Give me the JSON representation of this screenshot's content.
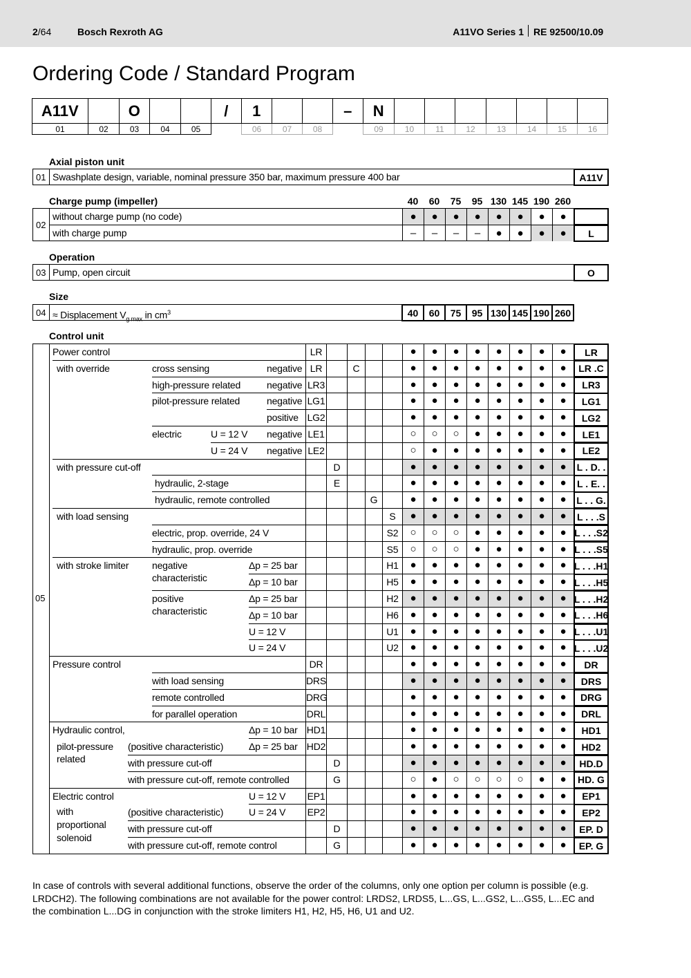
{
  "header": {
    "page": "2",
    "page_total": "/64",
    "company": "Bosch Rexroth AG",
    "series": "A11VO Series 1",
    "doc": "RE 92500/10.09"
  },
  "title": "Ordering Code / Standard Program",
  "code_boxes": [
    "A11V",
    "",
    "O",
    "",
    "",
    "/",
    "1",
    "",
    "",
    "–",
    "N",
    "",
    "",
    "",
    "",
    "",
    "",
    ""
  ],
  "code_numbers": [
    "01",
    "02",
    "03",
    "04",
    "05",
    "",
    "06",
    "07",
    "08",
    "",
    "09",
    "10",
    "11",
    "12",
    "13",
    "14",
    "15",
    "16"
  ],
  "sizes": [
    "40",
    "60",
    "75",
    "95",
    "130",
    "145",
    "190",
    "260"
  ],
  "s01": {
    "heading": "Axial piston unit",
    "num": "01",
    "text": "Swashplate design, variable, nominal pressure 350 bar, maximum pressure 400 bar",
    "code": "A11V"
  },
  "s02": {
    "heading": "Charge pump (impeller)",
    "num": "02",
    "rows": [
      {
        "text": "without charge pump (no code)",
        "avail": [
          "●",
          "●",
          "●",
          "●",
          "●",
          "●",
          "●",
          "●"
        ],
        "shade": [
          1,
          1,
          1,
          1,
          1,
          1,
          0,
          0
        ],
        "code": ""
      },
      {
        "text": "with charge pump",
        "avail": [
          "–",
          "–",
          "–",
          "–",
          "●",
          "●",
          "●",
          "●"
        ],
        "shade": [
          0,
          0,
          0,
          0,
          0,
          0,
          1,
          1
        ],
        "code": "L"
      }
    ]
  },
  "s03": {
    "heading": "Operation",
    "num": "03",
    "text": "Pump, open circuit",
    "code": "O"
  },
  "s04": {
    "heading": "Size",
    "num": "04",
    "text_pre": "≈ Displacement V",
    "text_sub": "g max",
    "text_post": " in cm",
    "text_sup": "3"
  },
  "s05": {
    "heading": "Control unit",
    "num": "05",
    "rows": [
      {
        "g": "Power control",
        "s": "",
        "o": "",
        "v": "",
        "n": "",
        "codes": [
          "LR",
          "",
          "",
          "",
          ""
        ],
        "avail": "●●●●●●●●",
        "shade": false,
        "order": "LR"
      },
      {
        "g": "",
        "s": "with override",
        "o": "cross sensing",
        "v": "",
        "n": "negative",
        "codes": [
          "LR",
          "",
          "C",
          "",
          ""
        ],
        "avail": "●●●●●●●●",
        "shade": false,
        "order": "LR .C"
      },
      {
        "g": "",
        "s": "",
        "o": "high-pressure related",
        "v": "",
        "n": "negative",
        "codes": [
          "LR3",
          "",
          "",
          "",
          ""
        ],
        "avail": "●●●●●●●●",
        "shade": false,
        "order": "LR3"
      },
      {
        "g": "",
        "s": "",
        "o": "pilot-pressure related",
        "v": "",
        "n": "negative",
        "codes": [
          "LG1",
          "",
          "",
          "",
          ""
        ],
        "avail": "●●●●●●●●",
        "shade": false,
        "order": "LG1"
      },
      {
        "g": "",
        "s": "",
        "o": "",
        "v": "",
        "n": "positive",
        "codes": [
          "LG2",
          "",
          "",
          "",
          ""
        ],
        "avail": "●●●●●●●●",
        "shade": false,
        "order": "LG2"
      },
      {
        "g": "",
        "s": "",
        "o": "electric",
        "v": "U = 12 V",
        "n": "negative",
        "codes": [
          "LE1",
          "",
          "",
          "",
          ""
        ],
        "avail": "○○○●●●●●",
        "shade": false,
        "order": "LE1"
      },
      {
        "g": "",
        "s": "",
        "o": "",
        "v": "U = 24 V",
        "n": "negative",
        "codes": [
          "LE2",
          "",
          "",
          "",
          ""
        ],
        "avail": "○●●●●●●●",
        "shade": false,
        "order": "LE2"
      },
      {
        "g": "",
        "s": "with pressure cut-off",
        "o": "",
        "v": "",
        "n": "",
        "codes": [
          "",
          "D",
          "",
          "",
          ""
        ],
        "avail": "●●●●●●●●",
        "shade": true,
        "order": "L . D. ."
      },
      {
        "g": "",
        "s": "",
        "o": "hydraulic, 2-stage",
        "v": "",
        "n": "",
        "codes": [
          "",
          "E",
          "",
          "",
          ""
        ],
        "avail": "●●●●●●●●",
        "shade": false,
        "order": "L . E. ."
      },
      {
        "g": "",
        "s": "",
        "o": "hydraulic, remote controlled",
        "v": "",
        "n": "",
        "codes": [
          "",
          "",
          "",
          "G",
          ""
        ],
        "avail": "●●●●●●●●",
        "shade": false,
        "order": "L . . G."
      },
      {
        "g": "",
        "s": "with load sensing",
        "o": "",
        "v": "",
        "n": "",
        "codes": [
          "",
          "",
          "",
          "",
          "S"
        ],
        "avail": "●●●●●●●●",
        "shade": true,
        "order": "L . . .S"
      },
      {
        "g": "",
        "s": "",
        "o": "electric, prop. override, 24 V",
        "v": "",
        "n": "",
        "codes": [
          "",
          "",
          "",
          "",
          "S2"
        ],
        "avail": "○○○●●●●●",
        "shade": false,
        "order": "L . . .S2"
      },
      {
        "g": "",
        "s": "",
        "o": "hydraulic, prop. override",
        "v": "",
        "n": "",
        "codes": [
          "",
          "",
          "",
          "",
          "S5"
        ],
        "avail": "○○○●●●●●",
        "shade": false,
        "order": "L . . .S5"
      },
      {
        "g": "",
        "s": "with stroke limiter",
        "o": "negative",
        "v": "Δp = 25 bar",
        "n": "",
        "codes": [
          "",
          "",
          "",
          "",
          "H1"
        ],
        "avail": "●●●●●●●●",
        "shade": false,
        "order": "L . . .H1"
      },
      {
        "g": "",
        "s": "",
        "o": "characteristic",
        "v": "Δp = 10 bar",
        "n": "",
        "codes": [
          "",
          "",
          "",
          "",
          "H5"
        ],
        "avail": "●●●●●●●●",
        "shade": false,
        "order": "L . . .H5"
      },
      {
        "g": "",
        "s": "",
        "o": "positive",
        "v": "Δp = 25 bar",
        "n": "",
        "codes": [
          "",
          "",
          "",
          "",
          "H2"
        ],
        "avail": "●●●●●●●●",
        "shade": true,
        "order": "L . . .H2"
      },
      {
        "g": "",
        "s": "",
        "o": "characteristic",
        "v": "Δp = 10 bar",
        "n": "",
        "codes": [
          "",
          "",
          "",
          "",
          "H6"
        ],
        "avail": "●●●●●●●●",
        "shade": false,
        "order": "L . . .H6"
      },
      {
        "g": "",
        "s": "",
        "o": "",
        "v": "U = 12 V",
        "n": "",
        "codes": [
          "",
          "",
          "",
          "",
          "U1"
        ],
        "avail": "●●●●●●●●",
        "shade": false,
        "order": "L . . .U1"
      },
      {
        "g": "",
        "s": "",
        "o": "",
        "v": "U = 24 V",
        "n": "",
        "codes": [
          "",
          "",
          "",
          "",
          "U2"
        ],
        "avail": "●●●●●●●●",
        "shade": false,
        "order": "L . . .U2"
      },
      {
        "g": "Pressure control",
        "s": "",
        "o": "",
        "v": "",
        "n": "",
        "codes": [
          "DR",
          "",
          "",
          "",
          ""
        ],
        "avail": "●●●●●●●●",
        "shade": false,
        "order": "DR"
      },
      {
        "g": "",
        "s": "",
        "o": "with load sensing",
        "v": "",
        "n": "",
        "codes": [
          "DRS",
          "",
          "",
          "",
          ""
        ],
        "avail": "●●●●●●●●",
        "shade": true,
        "order": "DRS"
      },
      {
        "g": "",
        "s": "",
        "o": "remote controlled",
        "v": "",
        "n": "",
        "codes": [
          "DRG",
          "",
          "",
          "",
          ""
        ],
        "avail": "●●●●●●●●",
        "shade": false,
        "order": "DRG"
      },
      {
        "g": "",
        "s": "",
        "o": "for parallel operation",
        "v": "",
        "n": "",
        "codes": [
          "DRL",
          "",
          "",
          "",
          ""
        ],
        "avail": "●●●●●●●●",
        "shade": false,
        "order": "DRL"
      },
      {
        "g": "Hydraulic control,",
        "s": "",
        "o": "",
        "v": "Δp = 10 bar",
        "n": "",
        "codes": [
          "HD1",
          "",
          "",
          "",
          ""
        ],
        "avail": "●●●●●●●●",
        "shade": false,
        "order": "HD1"
      },
      {
        "g": "",
        "s": "pilot-pressure",
        "o": "(positive characteristic)",
        "v": "Δp = 25 bar",
        "n": "",
        "codes": [
          "HD2",
          "",
          "",
          "",
          ""
        ],
        "avail": "●●●●●●●●",
        "shade": false,
        "order": "HD2"
      },
      {
        "g": "",
        "s": "related",
        "o": "with pressure cut-off",
        "v": "",
        "n": "",
        "codes": [
          "",
          "D",
          "",
          "",
          ""
        ],
        "avail": "●●●●●●●●",
        "shade": true,
        "order": "HD.D"
      },
      {
        "g": "",
        "s": "",
        "o": "with pressure cut-off, remote controlled",
        "v": "",
        "n": "",
        "codes": [
          "",
          "G",
          "",
          "",
          ""
        ],
        "avail": "○●○○○○●●",
        "shade": false,
        "order": "HD. G"
      },
      {
        "g": "Electric control",
        "s": "",
        "o": "",
        "v": "U = 12 V",
        "n": "",
        "codes": [
          "EP1",
          "",
          "",
          "",
          ""
        ],
        "avail": "●●●●●●●●",
        "shade": false,
        "order": "EP1"
      },
      {
        "g": "",
        "s": "with",
        "o": "(positive characteristic)",
        "v": "U = 24 V",
        "n": "",
        "codes": [
          "EP2",
          "",
          "",
          "",
          ""
        ],
        "avail": "●●●●●●●●",
        "shade": false,
        "order": "EP2"
      },
      {
        "g": "",
        "s": "proportional",
        "o": "with pressure cut-off",
        "v": "",
        "n": "",
        "codes": [
          "",
          "D",
          "",
          "",
          ""
        ],
        "avail": "●●●●●●●●",
        "shade": true,
        "order": "EP. D"
      },
      {
        "g": "",
        "s": "solenoid",
        "o": "with pressure cut-off, remote control",
        "v": "",
        "n": "",
        "codes": [
          "",
          "G",
          "",
          "",
          ""
        ],
        "avail": "●●●●●●●●",
        "shade": false,
        "order": "EP. G"
      }
    ]
  },
  "footnote": "In case of controls with several additional functions, observe the order of the columns, only one option per column is possible (e.g. LRDCH2). The following combinations are not available for the power control: LRDS2, LRDS5, L...GS, L...GS2, L...GS5, L...EC and the combination L...DG in conjunction with the stroke limiters H1, H2, H5, H6, U1 and U2."
}
